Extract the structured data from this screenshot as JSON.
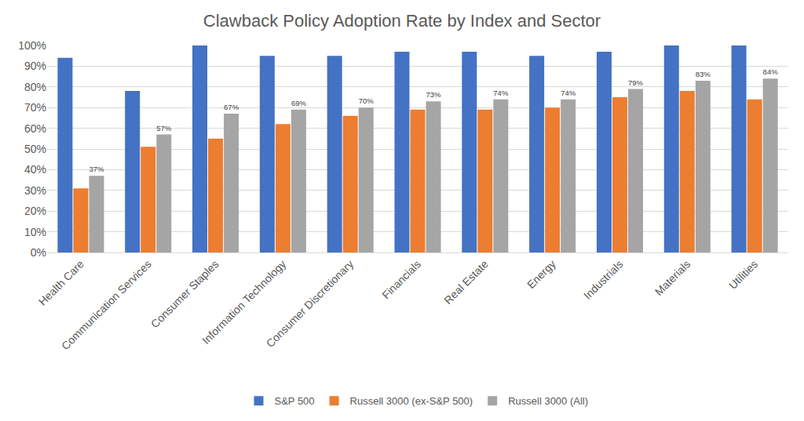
{
  "chart_data": {
    "type": "bar",
    "title": "Clawback Policy Adoption Rate by Index and Sector",
    "categories": [
      "Health Care",
      "Communication Services",
      "Consumer Staples",
      "Information Technology",
      "Consumer Discretionary",
      "Financials",
      "Real Estate",
      "Energy",
      "Industrials",
      "Materials",
      "Utilities"
    ],
    "series": [
      {
        "name": "S&P 500",
        "color": "#4472c4",
        "values": [
          94,
          78,
          100,
          95,
          95,
          97,
          97,
          95,
          97,
          100,
          100
        ]
      },
      {
        "name": "Russell 3000 (ex-S&P 500)",
        "color": "#ed7d31",
        "values": [
          31,
          51,
          55,
          62,
          66,
          69,
          69,
          70,
          75,
          78,
          74
        ]
      },
      {
        "name": "Russell 3000 (All)",
        "color": "#a5a5a5",
        "values": [
          37,
          57,
          67,
          69,
          70,
          73,
          74,
          74,
          79,
          83,
          84
        ],
        "value_labels": [
          "37%",
          "57%",
          "67%",
          "69%",
          "70%",
          "73%",
          "74%",
          "74%",
          "79%",
          "83%",
          "84%"
        ]
      }
    ],
    "ylim": [
      0,
      100
    ],
    "yticks": [
      {
        "value": 0,
        "label": "0%"
      },
      {
        "value": 10,
        "label": "10%"
      },
      {
        "value": 20,
        "label": "20%"
      },
      {
        "value": 30,
        "label": "30%"
      },
      {
        "value": 40,
        "label": "40%"
      },
      {
        "value": 50,
        "label": "50%"
      },
      {
        "value": 60,
        "label": "60%"
      },
      {
        "value": 70,
        "label": "70%"
      },
      {
        "value": 80,
        "label": "80%"
      },
      {
        "value": 90,
        "label": "90%"
      },
      {
        "value": 100,
        "label": "100%"
      }
    ],
    "grid": true,
    "legend": "bottom",
    "data_labels": true
  }
}
